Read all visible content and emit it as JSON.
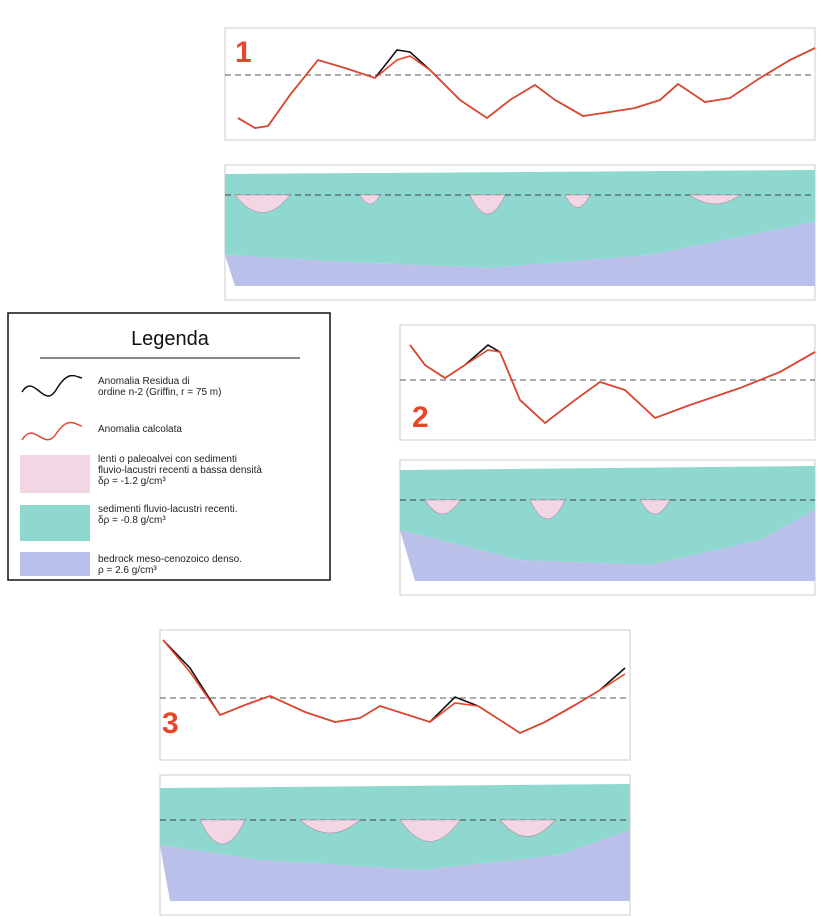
{
  "panels": [
    {
      "label": "1"
    },
    {
      "label": "2"
    },
    {
      "label": "3"
    }
  ],
  "legend": {
    "title": "Legenda",
    "items": [
      {
        "lines": [
          "Anomalia Residua di",
          "ordine n-2 (Griffin, r = 75 m)"
        ]
      },
      {
        "lines": [
          "Anomalia calcolata"
        ]
      },
      {
        "lines": [
          "lenti o paleoalvei con sedimenti",
          "fluvio-lacustri recenti a bassa densità",
          "δρ = -1.2 g/cm³"
        ]
      },
      {
        "lines": [
          "sedimenti  fluvio-lacustri recenti.",
          "δρ = -0.8 g/cm³"
        ]
      },
      {
        "lines": [
          "bedrock meso-cenozoico denso.",
          "ρ = 2.6 g/cm³"
        ]
      }
    ]
  }
}
